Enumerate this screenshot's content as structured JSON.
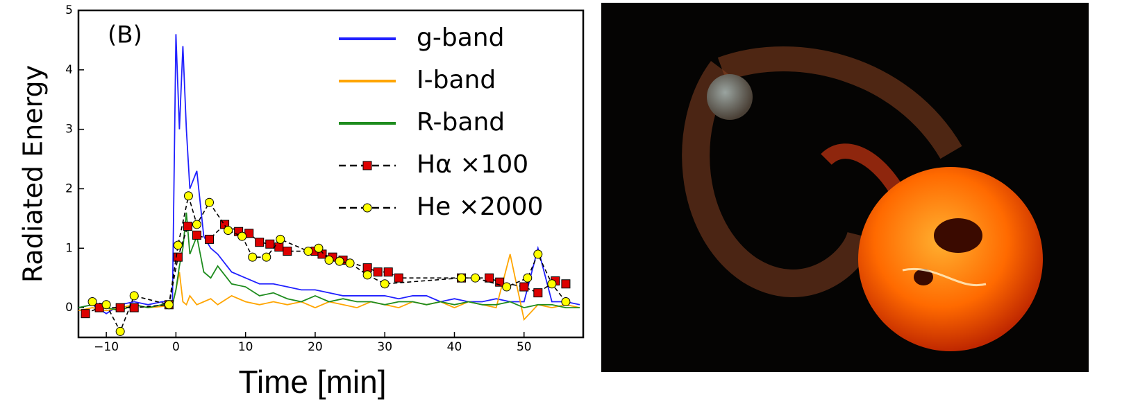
{
  "chart_data": {
    "type": "line",
    "annotation": "(B)",
    "ylabel": "Radiated Energy",
    "xlabel": "Time [min]",
    "xlim": [
      -14,
      58.5
    ],
    "ylim": [
      -0.5,
      5
    ],
    "xticks": [
      {
        "value": -10,
        "label": "−10"
      },
      0,
      10,
      20,
      30,
      40,
      50
    ],
    "yticks": [
      0,
      1,
      2,
      3,
      4,
      5
    ],
    "legend": "upper right",
    "x": [
      -14,
      -12,
      -10,
      -8,
      -6,
      -4,
      -2,
      -0.5,
      0,
      0.5,
      1,
      1.5,
      2,
      3,
      4,
      5,
      6,
      8,
      10,
      12,
      14,
      16,
      18,
      20,
      22,
      24,
      26,
      28,
      30,
      32,
      34,
      36,
      38,
      40,
      42,
      44,
      46,
      48,
      50,
      52,
      54,
      56,
      58
    ],
    "series": [
      {
        "name": "g-band",
        "color": "#2020ff",
        "values": [
          0,
          0.05,
          -0.1,
          0.05,
          0.1,
          0.05,
          0.1,
          0.1,
          4.6,
          3.0,
          4.4,
          3.0,
          2.0,
          2.3,
          1.2,
          1.0,
          0.9,
          0.6,
          0.5,
          0.4,
          0.4,
          0.35,
          0.3,
          0.3,
          0.25,
          0.2,
          0.2,
          0.2,
          0.2,
          0.15,
          0.2,
          0.2,
          0.1,
          0.15,
          0.1,
          0.1,
          0.15,
          0.1,
          0.1,
          1.0,
          0.1,
          0.1,
          0.05
        ]
      },
      {
        "name": "I-band",
        "color": "#ffa500",
        "values": [
          -0.05,
          0,
          -0.05,
          0,
          0.05,
          0,
          0.02,
          0.05,
          0.3,
          0.6,
          0.1,
          0.05,
          0.2,
          0.05,
          0.1,
          0.15,
          0.05,
          0.2,
          0.1,
          0.05,
          0.1,
          0.05,
          0.1,
          0.0,
          0.1,
          0.05,
          0.0,
          0.1,
          0.05,
          0.0,
          0.1,
          0.05,
          0.1,
          0.0,
          0.1,
          0.05,
          0.0,
          0.9,
          -0.2,
          0.05,
          0.0,
          0.05,
          0.0
        ]
      },
      {
        "name": "R-band",
        "color": "#1e8c1e",
        "values": [
          0,
          0.05,
          0,
          -0.05,
          0.05,
          0,
          0.05,
          0.05,
          0.3,
          0.7,
          1.0,
          1.6,
          0.9,
          1.2,
          0.6,
          0.5,
          0.7,
          0.4,
          0.35,
          0.2,
          0.25,
          0.15,
          0.1,
          0.2,
          0.1,
          0.15,
          0.1,
          0.1,
          0.05,
          0.1,
          0.1,
          0.05,
          0.1,
          0.05,
          0.1,
          0.05,
          0.05,
          0.1,
          0.0,
          0.05,
          0.05,
          0.0,
          0.0
        ]
      },
      {
        "name": "Hα ×100",
        "color": "#dd0000",
        "marker": "square",
        "x": [
          -13,
          -11,
          -8,
          -6,
          -1,
          0.3,
          1.7,
          3,
          4.8,
          7,
          9,
          10.5,
          12,
          13.5,
          14.8,
          16,
          20,
          21,
          22.5,
          24,
          27.5,
          29,
          30.5,
          32,
          41,
          45,
          46.5,
          50,
          52,
          54.5,
          56
        ],
        "values": [
          -0.1,
          0,
          0,
          0,
          0.05,
          0.85,
          1.37,
          1.22,
          1.15,
          1.4,
          1.28,
          1.25,
          1.1,
          1.07,
          1.02,
          0.95,
          0.95,
          0.9,
          0.85,
          0.8,
          0.67,
          0.6,
          0.6,
          0.5,
          0.5,
          0.5,
          0.43,
          0.35,
          0.25,
          0.45,
          0.4
        ]
      },
      {
        "name": "He ×2000",
        "color": "#ffff00",
        "marker": "circle",
        "x": [
          -12,
          -10,
          -8,
          -6,
          -1,
          0.3,
          1.8,
          3,
          4.8,
          7.5,
          9.5,
          11,
          13,
          15,
          19,
          20.5,
          22,
          23.5,
          25,
          27.5,
          30,
          41,
          43,
          47.5,
          50.5,
          52,
          54,
          56
        ],
        "values": [
          0.1,
          0.05,
          -0.4,
          0.2,
          0.05,
          1.05,
          1.88,
          1.4,
          1.77,
          1.3,
          1.2,
          0.85,
          0.85,
          1.15,
          0.95,
          1.0,
          0.8,
          0.78,
          0.75,
          0.55,
          0.4,
          0.5,
          0.5,
          0.35,
          0.5,
          0.9,
          0.4,
          0.1
        ]
      }
    ]
  }
}
